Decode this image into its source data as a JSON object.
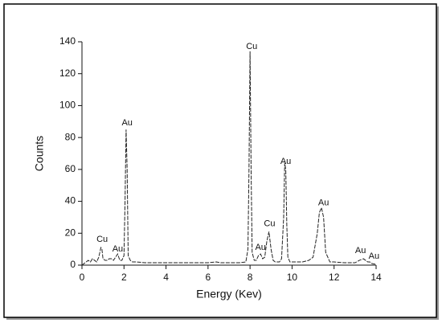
{
  "chart_data": {
    "type": "line",
    "x_label": "Energy (Kev)",
    "y_label": "Counts",
    "x": [
      0,
      0.1,
      0.2,
      0.3,
      0.4,
      0.5,
      0.6,
      0.7,
      0.8,
      0.9,
      0.95,
      1.0,
      1.1,
      1.2,
      1.3,
      1.4,
      1.5,
      1.6,
      1.7,
      1.8,
      1.9,
      2.0,
      2.05,
      2.1,
      2.15,
      2.2,
      2.3,
      2.4,
      2.6,
      3,
      4,
      5,
      6,
      6.4,
      6.6,
      7,
      7.5,
      7.8,
      7.9,
      7.95,
      8.0,
      8.05,
      8.1,
      8.2,
      8.3,
      8.4,
      8.5,
      8.6,
      8.7,
      8.8,
      8.9,
      9.0,
      9.1,
      9.2,
      9.4,
      9.5,
      9.6,
      9.65,
      9.7,
      9.75,
      9.8,
      9.9,
      10.0,
      10.2,
      10.5,
      10.8,
      11.0,
      11.2,
      11.3,
      11.4,
      11.5,
      11.6,
      11.8,
      12.0,
      12.5,
      13.0,
      13.2,
      13.4,
      13.5,
      13.6,
      13.7,
      13.8,
      14
    ],
    "series": [
      {
        "name": "Counts",
        "color": "#222222",
        "values": [
          0,
          1,
          2,
          3,
          2,
          4,
          3,
          2,
          5,
          11,
          10,
          4,
          3,
          3,
          4,
          4,
          3,
          5,
          7,
          3,
          3,
          6,
          40,
          85,
          60,
          6,
          3,
          2,
          2,
          1.5,
          1.5,
          1.5,
          1.5,
          2,
          1.5,
          1.5,
          1.5,
          2,
          10,
          60,
          134,
          60,
          8,
          3,
          3,
          6,
          7,
          4,
          5,
          15,
          21,
          10,
          3,
          2,
          2,
          4,
          30,
          64,
          60,
          25,
          5,
          2,
          2,
          2,
          2,
          3,
          5,
          20,
          33,
          36,
          30,
          8,
          2,
          2,
          1.5,
          1.5,
          3,
          4,
          3,
          2,
          2,
          1,
          0.5
        ]
      }
    ],
    "xlim": [
      0,
      14
    ],
    "xticks": [
      0,
      2,
      4,
      6,
      8,
      10,
      12,
      14
    ],
    "ylim": [
      0,
      140
    ],
    "yticks": [
      0,
      20,
      40,
      60,
      80,
      100,
      120,
      140
    ],
    "annotations": [
      {
        "text": "Cu",
        "x": 0.96,
        "y": 16
      },
      {
        "text": "Au",
        "x": 1.7,
        "y": 10
      },
      {
        "text": "Au",
        "x": 2.15,
        "y": 89
      },
      {
        "text": "Cu",
        "x": 8.08,
        "y": 137
      },
      {
        "text": "Au",
        "x": 8.5,
        "y": 11
      },
      {
        "text": "Cu",
        "x": 8.93,
        "y": 26
      },
      {
        "text": "Au",
        "x": 9.7,
        "y": 65
      },
      {
        "text": "Au",
        "x": 11.5,
        "y": 39
      },
      {
        "text": "Au",
        "x": 13.26,
        "y": 9
      },
      {
        "text": "Au",
        "x": 13.9,
        "y": 5.5
      }
    ]
  }
}
